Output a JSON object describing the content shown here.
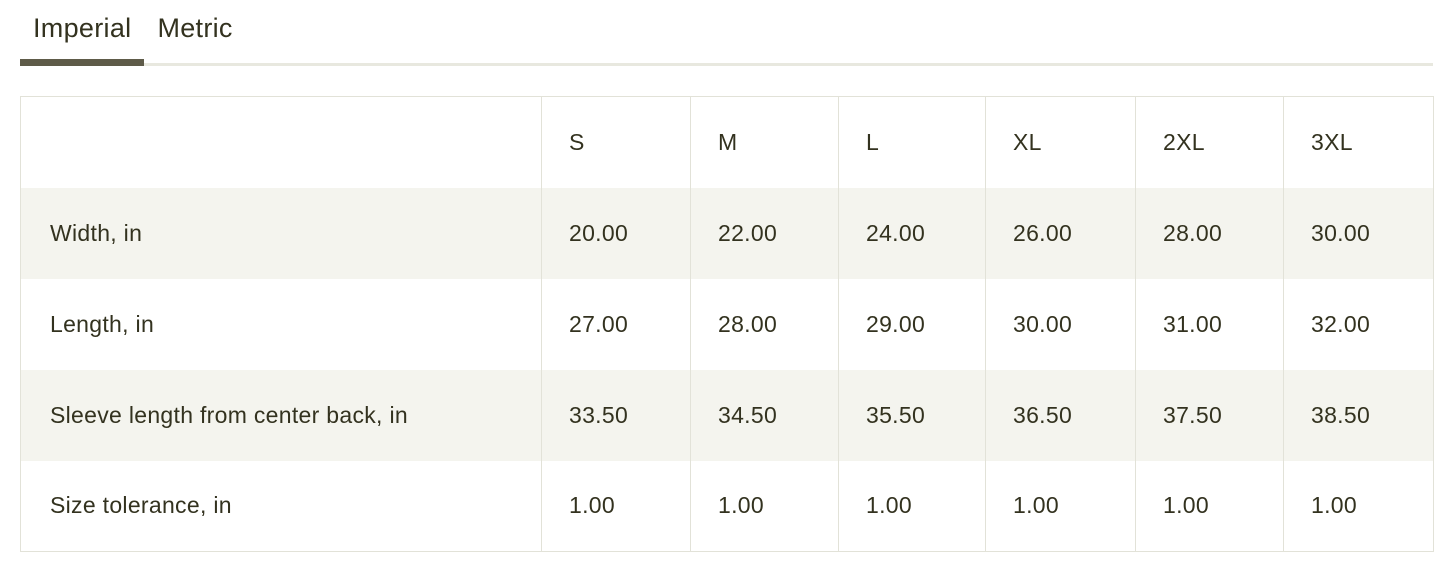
{
  "tabs": {
    "items": [
      {
        "label": "Imperial",
        "active": true
      },
      {
        "label": "Metric",
        "active": false
      }
    ]
  },
  "size_chart": {
    "columns": [
      "S",
      "M",
      "L",
      "XL",
      "2XL",
      "3XL"
    ],
    "rows": [
      {
        "label": "Width, in",
        "values": [
          "20.00",
          "22.00",
          "24.00",
          "26.00",
          "28.00",
          "30.00"
        ]
      },
      {
        "label": "Length, in",
        "values": [
          "27.00",
          "28.00",
          "29.00",
          "30.00",
          "31.00",
          "32.00"
        ]
      },
      {
        "label": "Sleeve length from center back, in",
        "values": [
          "33.50",
          "34.50",
          "35.50",
          "36.50",
          "37.50",
          "38.50"
        ]
      },
      {
        "label": "Size tolerance, in",
        "values": [
          "1.00",
          "1.00",
          "1.00",
          "1.00",
          "1.00",
          "1.00"
        ]
      }
    ]
  },
  "colors": {
    "text": "#33321f",
    "active_tab_underline": "#5e5b49",
    "tab_divider": "#e8e8df",
    "table_border": "#e2e2d8",
    "row_stripe": "#f4f4ee",
    "background": "#ffffff"
  }
}
